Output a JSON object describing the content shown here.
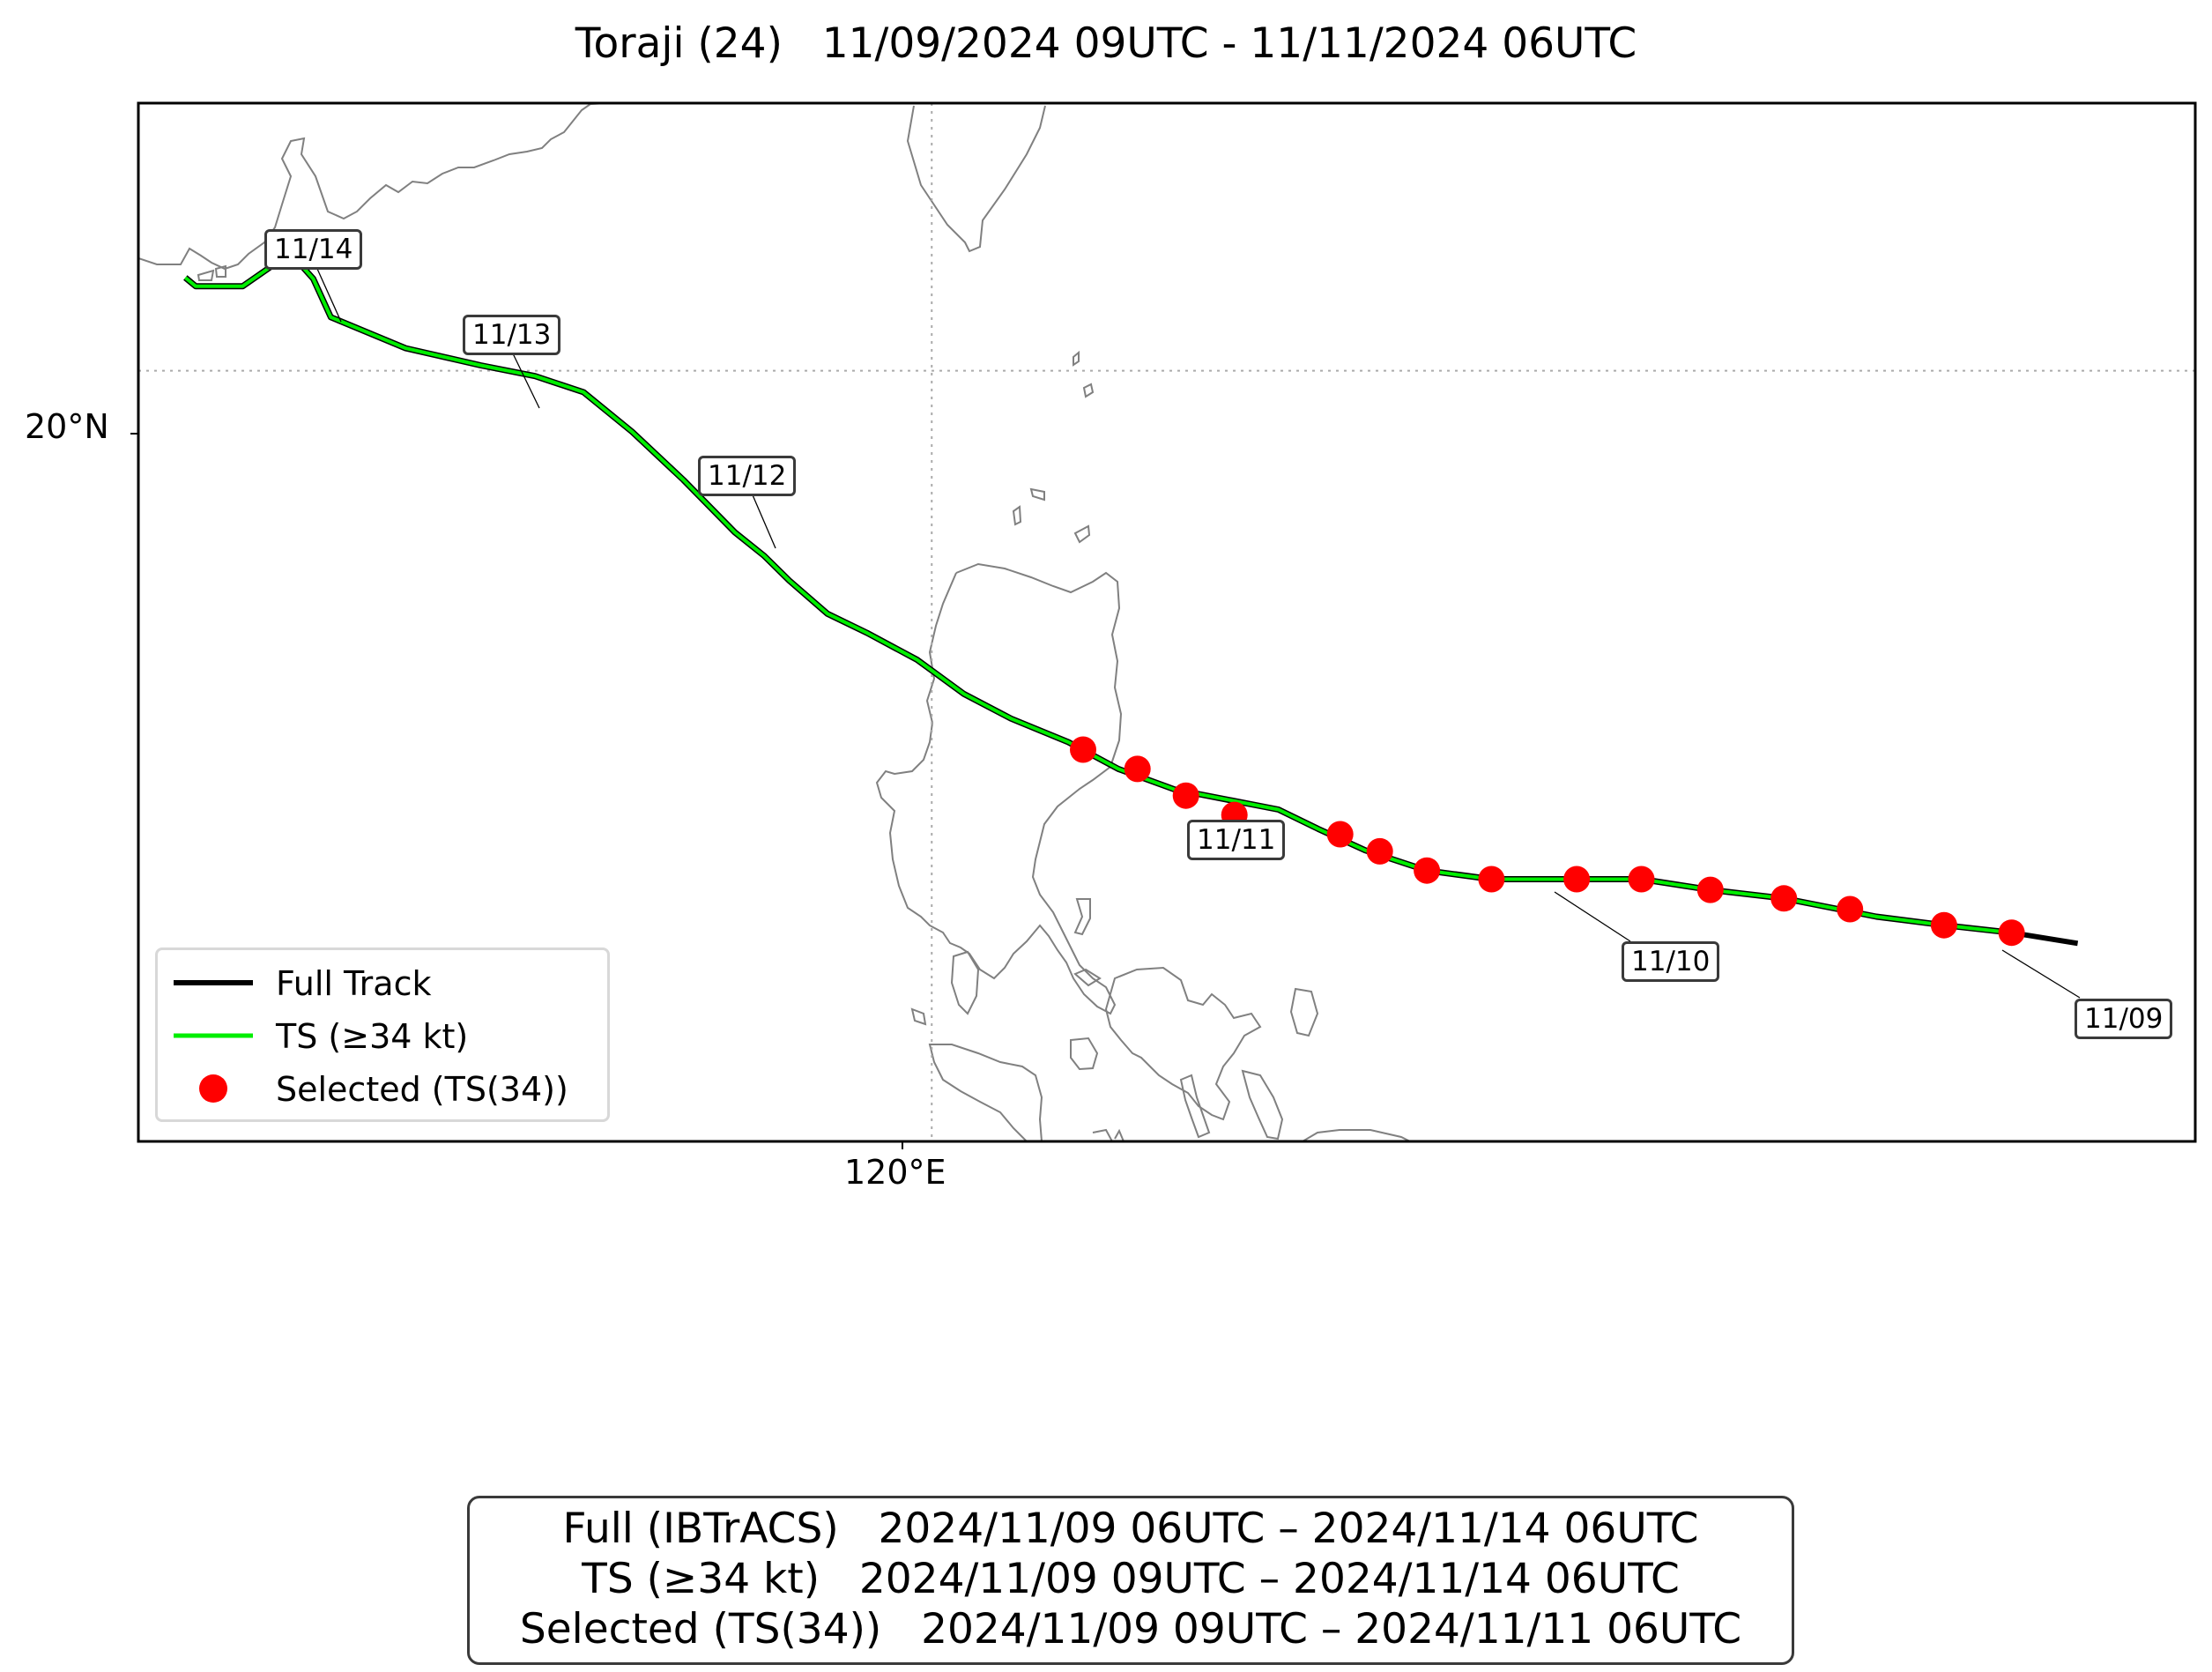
{
  "title": "Toraji (24)   11/09/2024 09UTC - 11/11/2024 06UTC",
  "axes": {
    "lat_label": "20°N",
    "lon_label": "120°E"
  },
  "colors": {
    "full_track": "#000000",
    "ts_track": "#00ee00",
    "selected": "#ff0000",
    "coast": "#808080",
    "grid": "#aaaaaa"
  },
  "map": {
    "lon_range": [
      114.6,
      128.6
    ],
    "lat_range": [
      12.8,
      22.5
    ],
    "grid_lon": [
      120
    ],
    "grid_lat": [
      20
    ]
  },
  "legend": {
    "items": [
      {
        "label": "Full Track",
        "symbol": "black-line"
      },
      {
        "label": "TS (≥34 kt)",
        "symbol": "green-line"
      },
      {
        "label": "Selected (TS(34))",
        "symbol": "red-dot"
      }
    ],
    "placement": "lower-left"
  },
  "date_labels": [
    "11/09",
    "11/10",
    "11/11",
    "11/12",
    "11/13",
    "11/14"
  ],
  "track": {
    "points": [
      [
        127.35,
        14.75
      ],
      [
        126.89,
        14.82
      ],
      [
        126.43,
        14.9
      ],
      [
        125.8,
        15.07
      ],
      [
        125.3,
        15.15
      ],
      [
        124.83,
        15.25
      ],
      [
        124.39,
        15.25
      ],
      [
        123.81,
        15.25
      ],
      [
        123.37,
        15.33
      ],
      [
        122.95,
        15.52
      ],
      [
        122.63,
        15.72
      ],
      [
        122.36,
        15.9
      ],
      [
        121.65,
        16.09
      ],
      [
        121.27,
        16.28
      ],
      [
        120.93,
        16.53
      ],
      [
        120.54,
        16.75
      ],
      [
        120.22,
        16.98
      ],
      [
        119.9,
        17.3
      ],
      [
        119.56,
        17.55
      ],
      [
        119.29,
        17.73
      ],
      [
        119.03,
        18.04
      ],
      [
        118.86,
        18.27
      ],
      [
        118.66,
        18.49
      ],
      [
        118.31,
        18.98
      ],
      [
        117.96,
        19.43
      ],
      [
        117.63,
        19.8
      ],
      [
        117.3,
        19.95
      ],
      [
        116.93,
        20.05
      ],
      [
        116.42,
        20.21
      ],
      [
        115.91,
        20.5
      ],
      [
        115.79,
        20.86
      ],
      [
        115.66,
        21.06
      ],
      [
        115.51,
        20.98
      ],
      [
        115.31,
        20.79
      ],
      [
        114.99,
        20.79
      ],
      [
        114.92,
        20.87
      ]
    ],
    "full_only_points": [
      [
        127.8,
        14.65
      ],
      [
        127.35,
        14.75
      ]
    ]
  },
  "selected_points": [
    [
      127.35,
      14.75
    ],
    [
      126.89,
      14.82
    ],
    [
      126.25,
      14.97
    ],
    [
      125.8,
      15.07
    ],
    [
      125.3,
      15.15
    ],
    [
      124.83,
      15.25
    ],
    [
      124.39,
      15.25
    ],
    [
      123.81,
      15.25
    ],
    [
      123.37,
      15.33
    ],
    [
      123.05,
      15.51
    ],
    [
      122.78,
      15.67
    ],
    [
      122.06,
      15.85
    ],
    [
      121.73,
      16.03
    ],
    [
      121.4,
      16.28
    ],
    [
      121.03,
      16.46
    ]
  ],
  "summary": {
    "lines": [
      "Full (IBTrACS)   2024/11/09 06UTC – 2024/11/14 06UTC",
      "TS (≥34 kt)   2024/11/09 09UTC – 2024/11/14 06UTC",
      "Selected (TS(34))   2024/11/09 09UTC – 2024/11/11 06UTC"
    ]
  }
}
